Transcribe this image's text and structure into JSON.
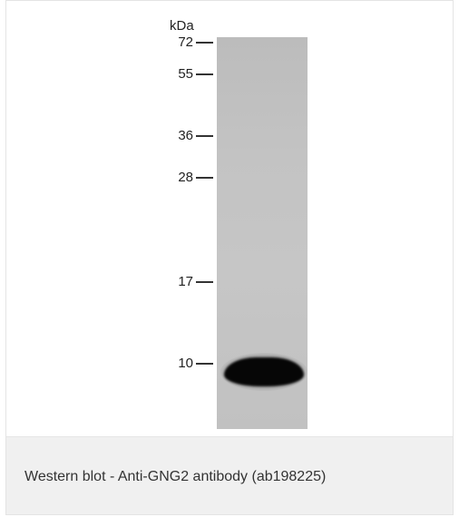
{
  "blot": {
    "unit": "kDa",
    "markers": [
      "72",
      "55",
      "36",
      "28",
      "17",
      "10"
    ],
    "band": {
      "lanes": 1,
      "approx_size_kDa": "10",
      "intensity": "strong"
    }
  },
  "caption": {
    "text": "Western blot - Anti-GNG2 antibody (ab198225)"
  }
}
